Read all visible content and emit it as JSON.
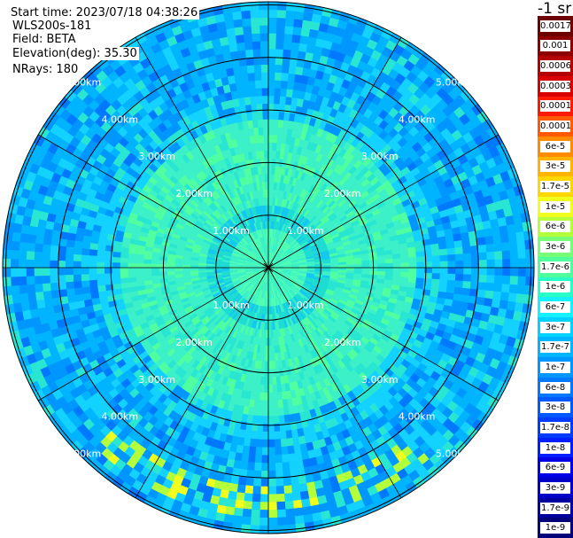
{
  "header": {
    "start_time": "Start time: 2023/07/18 04:38:26",
    "device": "WLS200s-181",
    "field": "Field: BETA",
    "elevation": "Elevation(deg): 35.30",
    "nrays": "NRays: 180"
  },
  "unit_label": "-1 sr",
  "chart_data": {
    "type": "heatmap",
    "subtype": "polar-ppi",
    "field": "BETA",
    "n_rays": 180,
    "elevation_deg": 35.3,
    "range_rings_km": [
      1,
      2,
      3,
      4,
      5
    ],
    "range_labels": [
      "1.00km",
      "2.00km",
      "3.00km",
      "4.00km",
      "5.00km"
    ],
    "spokes_deg_step": 30,
    "colorbar": {
      "order": "top-to-bottom",
      "labels": [
        "0.0017",
        "0.001",
        "0.0006",
        "0.0003",
        "0.00017",
        "0.0001",
        "6e-5",
        "3e-5",
        "1.7e-5",
        "1e-5",
        "6e-6",
        "3e-6",
        "1.7e-6",
        "1e-6",
        "6e-7",
        "3e-7",
        "1.7e-7",
        "1e-7",
        "6e-8",
        "3e-8",
        "1.7e-8",
        "1e-8",
        "6e-9",
        "3e-9",
        "1.7e-9",
        "1e-9"
      ],
      "colors": [
        "#6e0000",
        "#8c0000",
        "#b40000",
        "#d80000",
        "#ff1a00",
        "#ff5a00",
        "#ff8c00",
        "#ffb400",
        "#ffd700",
        "#f0ff1e",
        "#b4ff3c",
        "#78ff78",
        "#50ff9c",
        "#28ffc8",
        "#14f0ff",
        "#00d2ff",
        "#00b4ff",
        "#0096ff",
        "#0078ff",
        "#005aff",
        "#003cff",
        "#001eff",
        "#0000e6",
        "#0000c8",
        "#0000a0",
        "#000078"
      ]
    }
  }
}
